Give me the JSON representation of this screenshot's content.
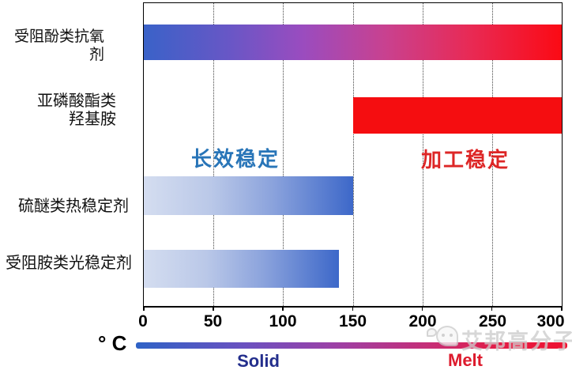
{
  "chart_data": {
    "type": "bar",
    "orientation": "horizontal",
    "title": "",
    "xlabel": "° C",
    "xlim": [
      0,
      300
    ],
    "x_ticks": [
      0,
      50,
      100,
      150,
      200,
      250,
      300
    ],
    "grid": "vertical-dotted",
    "categories": [
      "受阻酚类抗氧剂",
      "亚磷酸酯类\n羟基胺",
      "硫醚类热稳定剂",
      "受阻胺类光稳定剂"
    ],
    "bars": [
      {
        "category": "受阻酚类抗氧剂",
        "start": 0,
        "end": 300,
        "style": "melt-gradient",
        "color_note": "blue to purple to red gradient"
      },
      {
        "category": "亚磷酸酯类 羟基胺",
        "start": 150,
        "end": 300,
        "style": "solid-red",
        "color_note": "#f50d10"
      },
      {
        "category": "硫醚类热稳定剂",
        "start": 0,
        "end": 150,
        "style": "blue-gradient",
        "color_note": "pale blue to strong blue gradient"
      },
      {
        "category": "受阻胺类光稳定剂",
        "start": 0,
        "end": 140,
        "style": "blue-gradient",
        "color_note": "pale blue to strong blue gradient"
      }
    ],
    "annotations": [
      {
        "id": "long_term",
        "text": "长效稳定",
        "color": "#2875b8"
      },
      {
        "id": "processing",
        "text": "加工稳定",
        "color": "#dd2626"
      }
    ]
  },
  "legend": {
    "unit_label": "° C",
    "solid_label": "Solid",
    "solid_color": "#232e8c",
    "melt_label": "Melt",
    "melt_color": "#dd1b2d",
    "gradient_note": "blue (solid) to red (melt) temperature scale bar"
  },
  "watermark": {
    "icon": "chat-bubbles-logo",
    "text": "艾邦高分子"
  },
  "colors": {
    "bar_blue_start": "#3a62c8",
    "bar_red_end": "#fb0a14",
    "bar_solid_red": "#f50d10",
    "bar_pale_blue": "#d4ddf0",
    "bar_strong_blue": "#3d68c9"
  }
}
